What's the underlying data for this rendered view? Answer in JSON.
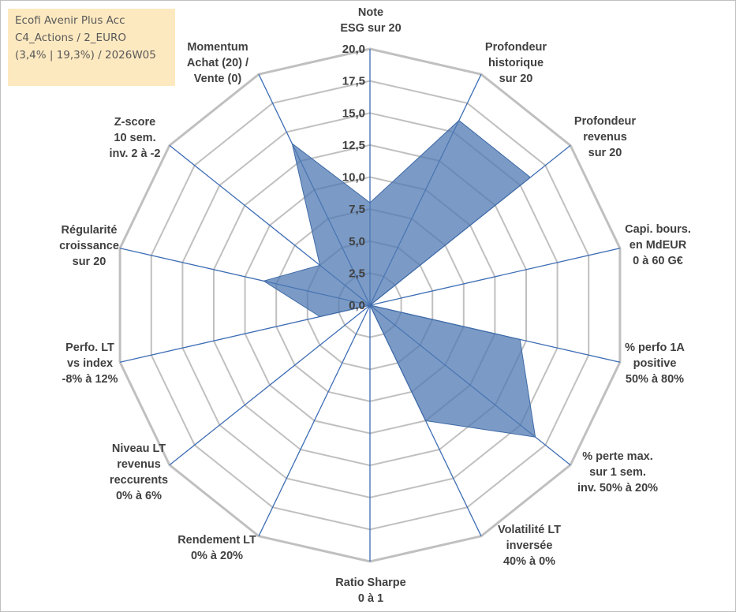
{
  "info": {
    "line1": "Ecofi Avenir Plus Acc",
    "line2": "C4_Actions / 2_EURO",
    "line3": "(3,4% | 19,3%) / 2026W05"
  },
  "chart_data": {
    "type": "radar",
    "range": [
      0,
      20
    ],
    "ticks": [
      "0,0",
      "2,5",
      "5,0",
      "7,5",
      "10,0",
      "12,5",
      "15,0",
      "17,5",
      "20,0"
    ],
    "grid_steps": 8,
    "axes": [
      {
        "label": [
          "Note",
          "ESG sur 20"
        ],
        "value": 8.0
      },
      {
        "label": [
          "Profondeur",
          "historique",
          "sur 20"
        ],
        "value": 16.0
      },
      {
        "label": [
          "Profondeur",
          "revenus",
          "sur 20"
        ],
        "value": 16.0
      },
      {
        "label": [
          "Capi. bours.",
          "en MdEUR",
          "0 à 60 G€"
        ],
        "value": 0.0
      },
      {
        "label": [
          "% perfo 1A",
          "positive",
          "50% à 80%"
        ],
        "value": 12.0
      },
      {
        "label": [
          "% perte max.",
          "sur 1 sem.",
          "inv. 50% à 20%"
        ],
        "value": 16.5
      },
      {
        "label": [
          "Volatilité LT",
          "inversée",
          "40% à 0%"
        ],
        "value": 10.0
      },
      {
        "label": [
          "Ratio Sharpe",
          "0 à 1"
        ],
        "value": 0.0
      },
      {
        "label": [
          "Rendement LT",
          "0% à 20%"
        ],
        "value": 0.0
      },
      {
        "label": [
          "Niveau LT",
          "revenus",
          "reccurents",
          "0% à 6%"
        ],
        "value": 0.0
      },
      {
        "label": [
          "Perfo. LT",
          "vs index",
          "-8% à 12%"
        ],
        "value": 4.0
      },
      {
        "label": [
          "Régularité",
          "croissance",
          "sur 20"
        ],
        "value": 8.5
      },
      {
        "label": [
          "Z-score",
          "10 sem.",
          "inv. 2 à -2"
        ],
        "value": 5.0
      },
      {
        "label": [
          "Momentum",
          "Achat (20) /",
          "Vente (0)"
        ],
        "value": 14.0
      }
    ],
    "series": [
      {
        "name": "Ecofi Avenir Plus Acc",
        "color": "#4f7ab3"
      }
    ],
    "colors": {
      "grid": "#c0c0c0",
      "spoke": "#3d6db5",
      "fill": "#4f7ab3"
    }
  }
}
